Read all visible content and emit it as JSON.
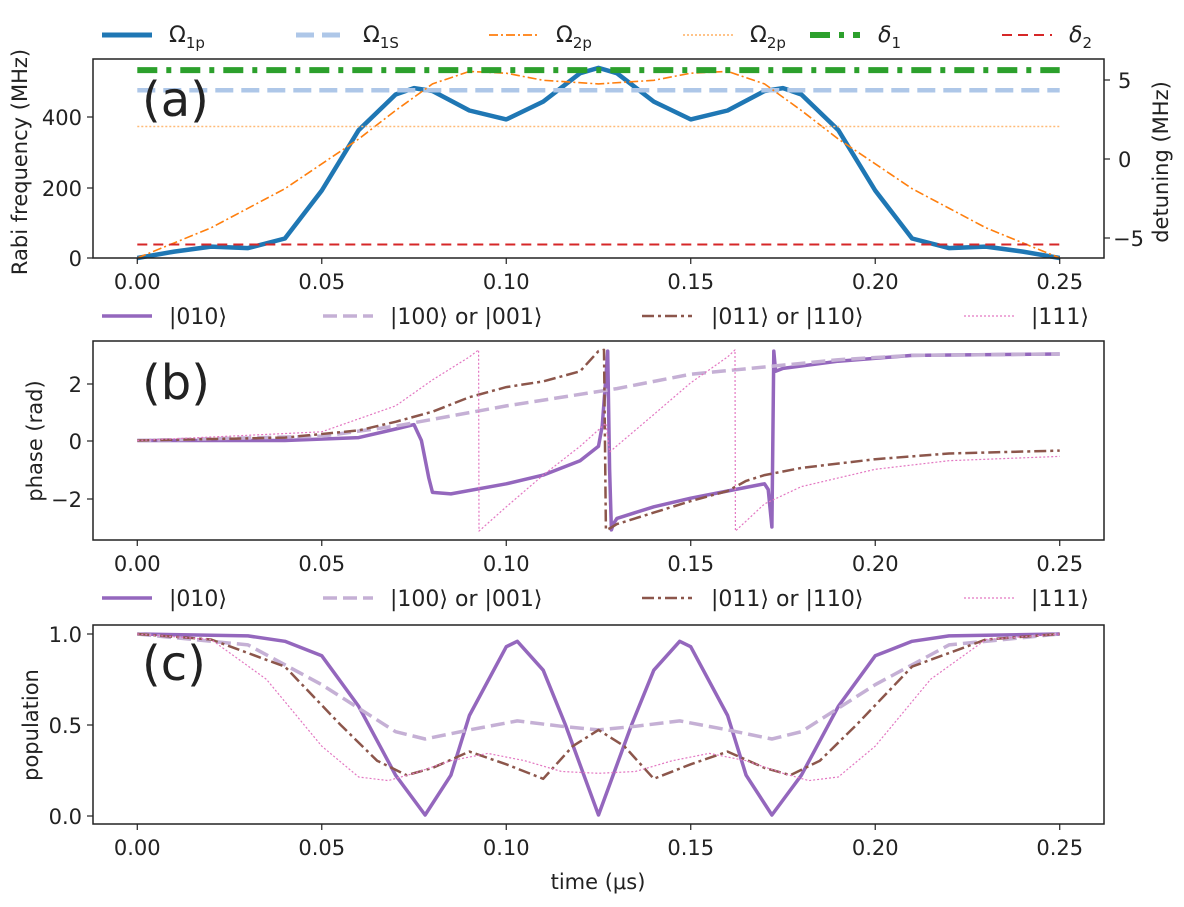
{
  "figure": {
    "panel_a": {
      "tag": "(a)",
      "ylabel": "Rabi frequency (MHz)",
      "ylabel_right": "detuning (MHz)",
      "xticks": [
        "0.00",
        "0.05",
        "0.10",
        "0.15",
        "0.20",
        "0.25"
      ],
      "yticks": [
        "0",
        "200",
        "400"
      ],
      "yticks_right": [
        "−5",
        "0",
        "5"
      ],
      "legend": [
        {
          "sym": "Ω",
          "sub": "1p",
          "color": "#1f77b4",
          "style": "solid"
        },
        {
          "sym": "Ω",
          "sub": "1S",
          "color": "#aec7e8",
          "style": "dashed"
        },
        {
          "sym": "Ω",
          "sub": "2p",
          "color": "#ff7f0e",
          "style": "dashdot"
        },
        {
          "sym": "Ω",
          "sub": "2p",
          "color": "#ffbb78",
          "style": "dotted"
        },
        {
          "sym": "δ",
          "sub": "1",
          "color": "#2ca02c",
          "style": "dashdot-thick"
        },
        {
          "sym": "δ",
          "sub": "2",
          "color": "#d62728",
          "style": "dashed-thin"
        }
      ]
    },
    "panel_b": {
      "tag": "(b)",
      "ylabel": "phase (rad)",
      "xticks": [
        "0.00",
        "0.05",
        "0.10",
        "0.15",
        "0.20",
        "0.25"
      ],
      "yticks": [
        "−2",
        "0",
        "2"
      ],
      "legend": [
        {
          "label": "|010⟩",
          "color": "#9467bd",
          "style": "solid"
        },
        {
          "label": "|100⟩ or |001⟩",
          "color": "#c5b0d5",
          "style": "dashed"
        },
        {
          "label": "|011⟩ or |110⟩",
          "color": "#8c564b",
          "style": "dashdot"
        },
        {
          "label": "|111⟩",
          "color": "#e377c2",
          "style": "dotted"
        }
      ]
    },
    "panel_c": {
      "tag": "(c)",
      "ylabel": "population",
      "xlabel": "time (μs)",
      "xticks": [
        "0.00",
        "0.05",
        "0.10",
        "0.15",
        "0.20",
        "0.25"
      ],
      "yticks": [
        "0.0",
        "0.5",
        "1.0"
      ],
      "legend": [
        {
          "label": "|010⟩",
          "color": "#9467bd",
          "style": "solid"
        },
        {
          "label": "|100⟩ or |001⟩",
          "color": "#c5b0d5",
          "style": "dashed"
        },
        {
          "label": "|011⟩ or |110⟩",
          "color": "#8c564b",
          "style": "dashdot"
        },
        {
          "label": "|111⟩",
          "color": "#e377c2",
          "style": "dotted"
        }
      ]
    }
  },
  "chart_data": [
    {
      "type": "line",
      "xlabel": "",
      "ylabel": "Rabi frequency (MHz)",
      "ylabel_right": "detuning (MHz)",
      "xlim": [
        -0.012,
        0.262
      ],
      "ylim": [
        0,
        560
      ],
      "ylim_right": [
        -6.35,
        6.2
      ],
      "series": [
        {
          "name": "Ω_1p",
          "axis": "left",
          "x": [
            0,
            0.01,
            0.02,
            0.03,
            0.04,
            0.05,
            0.06,
            0.07,
            0.075,
            0.08,
            0.09,
            0.1,
            0.11,
            0.12,
            0.125,
            0.13,
            0.14,
            0.15,
            0.16,
            0.17,
            0.175,
            0.18,
            0.19,
            0.2,
            0.21,
            0.22,
            0.23,
            0.24,
            0.25
          ],
          "y": [
            0,
            18,
            32,
            28,
            55,
            190,
            360,
            460,
            478,
            470,
            415,
            390,
            440,
            520,
            535,
            520,
            440,
            390,
            415,
            470,
            478,
            460,
            360,
            190,
            55,
            28,
            32,
            18,
            0
          ]
        },
        {
          "name": "Ω_1S",
          "axis": "left",
          "x": [
            0,
            0.25
          ],
          "y": [
            472,
            472
          ]
        },
        {
          "name": "Ω_2p",
          "axis": "left",
          "x": [
            0,
            0.02,
            0.04,
            0.06,
            0.07,
            0.08,
            0.09,
            0.1,
            0.11,
            0.125,
            0.14,
            0.15,
            0.16,
            0.17,
            0.18,
            0.19,
            0.21,
            0.23,
            0.25
          ],
          "y": [
            0,
            85,
            195,
            335,
            415,
            490,
            525,
            520,
            500,
            490,
            500,
            520,
            525,
            490,
            415,
            335,
            195,
            85,
            0
          ]
        },
        {
          "name": "Ω_2p",
          "axis": "left",
          "x": [
            0,
            0.25
          ],
          "y": [
            370,
            370
          ]
        },
        {
          "name": "δ_1",
          "axis": "right",
          "x": [
            0,
            0.25
          ],
          "y": [
            5.5,
            5.5
          ]
        },
        {
          "name": "δ_2",
          "axis": "right",
          "x": [
            0,
            0.25
          ],
          "y": [
            -5.5,
            -5.5
          ]
        }
      ]
    },
    {
      "type": "line",
      "xlabel": "",
      "ylabel": "phase (rad)",
      "xlim": [
        -0.012,
        0.262
      ],
      "ylim": [
        -3.45,
        3.45
      ],
      "series": [
        {
          "name": "|010⟩",
          "x": [
            0,
            0.04,
            0.06,
            0.07,
            0.075,
            0.077,
            0.079,
            0.08,
            0.085,
            0.1,
            0.11,
            0.12,
            0.125,
            0.126,
            0.127,
            0.1275,
            0.128,
            0.1285,
            0.129,
            0.13,
            0.14,
            0.15,
            0.16,
            0.17,
            0.171,
            0.172,
            0.1725,
            0.173,
            0.175,
            0.19,
            0.21,
            0.25
          ],
          "y": [
            0,
            0,
            0.1,
            0.4,
            0.55,
            0.0,
            -1.3,
            -1.8,
            -1.85,
            -1.5,
            -1.2,
            -0.7,
            -0.2,
            0.5,
            2.2,
            3.1,
            -1.0,
            -3.1,
            -2.9,
            -2.7,
            -2.3,
            -2.0,
            -1.75,
            -1.5,
            -1.7,
            -3.0,
            3.1,
            2.4,
            2.5,
            2.75,
            2.95,
            3.0
          ]
        },
        {
          "name": "|100⟩ or |001⟩",
          "x": [
            0,
            0.05,
            0.07,
            0.1,
            0.13,
            0.15,
            0.17,
            0.19,
            0.21,
            0.25
          ],
          "y": [
            0,
            0.15,
            0.5,
            1.2,
            1.8,
            2.3,
            2.55,
            2.8,
            2.95,
            3.0
          ]
        },
        {
          "name": "|011⟩ or |110⟩",
          "x": [
            0,
            0.04,
            0.06,
            0.07,
            0.08,
            0.09,
            0.1,
            0.11,
            0.12,
            0.125,
            0.1265,
            0.127,
            0.128,
            0.13,
            0.14,
            0.15,
            0.16,
            0.165,
            0.17,
            0.18,
            0.2,
            0.22,
            0.25
          ],
          "y": [
            0,
            0.1,
            0.35,
            0.65,
            1.0,
            1.5,
            1.85,
            2.05,
            2.4,
            3.1,
            3.14,
            -3.1,
            -3.05,
            -2.9,
            -2.5,
            -2.1,
            -1.75,
            -1.4,
            -1.2,
            -0.95,
            -0.65,
            -0.45,
            -0.35
          ]
        },
        {
          "name": "|111⟩",
          "x": [
            0,
            0.05,
            0.07,
            0.08,
            0.09,
            0.0925,
            0.0926,
            0.1,
            0.11,
            0.12,
            0.127,
            0.128,
            0.14,
            0.15,
            0.16,
            0.162,
            0.1621,
            0.17,
            0.18,
            0.2,
            0.22,
            0.25
          ],
          "y": [
            0,
            0.3,
            1.2,
            2.1,
            2.9,
            3.14,
            -3.14,
            -2.3,
            -1.2,
            -0.2,
            0.6,
            -0.4,
            0.9,
            2.0,
            2.9,
            3.14,
            -3.14,
            -2.2,
            -1.6,
            -1.0,
            -0.7,
            -0.55
          ]
        }
      ]
    },
    {
      "type": "line",
      "xlabel": "time (μs)",
      "ylabel": "population",
      "xlim": [
        -0.012,
        0.262
      ],
      "ylim": [
        -0.05,
        1.05
      ],
      "series": [
        {
          "name": "|010⟩",
          "x": [
            0,
            0.03,
            0.04,
            0.05,
            0.06,
            0.07,
            0.078,
            0.085,
            0.09,
            0.1,
            0.103,
            0.11,
            0.116,
            0.125,
            0.134,
            0.14,
            0.147,
            0.15,
            0.16,
            0.165,
            0.172,
            0.18,
            0.19,
            0.2,
            0.21,
            0.22,
            0.25
          ],
          "y": [
            1,
            0.99,
            0.96,
            0.88,
            0.6,
            0.22,
            0.0,
            0.22,
            0.55,
            0.93,
            0.96,
            0.8,
            0.5,
            0.0,
            0.5,
            0.8,
            0.96,
            0.93,
            0.55,
            0.22,
            0.0,
            0.22,
            0.6,
            0.88,
            0.96,
            0.99,
            1
          ]
        },
        {
          "name": "|100⟩ or |001⟩",
          "x": [
            0,
            0.03,
            0.05,
            0.07,
            0.078,
            0.09,
            0.103,
            0.115,
            0.125,
            0.135,
            0.147,
            0.16,
            0.172,
            0.18,
            0.2,
            0.22,
            0.25
          ],
          "y": [
            1,
            0.94,
            0.72,
            0.46,
            0.42,
            0.47,
            0.52,
            0.49,
            0.47,
            0.49,
            0.52,
            0.47,
            0.42,
            0.46,
            0.72,
            0.94,
            1
          ]
        },
        {
          "name": "|011⟩ or |110⟩",
          "x": [
            0,
            0.02,
            0.04,
            0.055,
            0.065,
            0.073,
            0.08,
            0.09,
            0.1,
            0.11,
            0.118,
            0.125,
            0.132,
            0.14,
            0.15,
            0.16,
            0.17,
            0.177,
            0.185,
            0.195,
            0.21,
            0.23,
            0.25
          ],
          "y": [
            1,
            0.97,
            0.82,
            0.5,
            0.3,
            0.22,
            0.26,
            0.35,
            0.28,
            0.2,
            0.38,
            0.47,
            0.38,
            0.2,
            0.28,
            0.35,
            0.26,
            0.22,
            0.3,
            0.5,
            0.82,
            0.97,
            1
          ]
        },
        {
          "name": "|111⟩",
          "x": [
            0,
            0.02,
            0.035,
            0.05,
            0.06,
            0.068,
            0.075,
            0.085,
            0.095,
            0.105,
            0.115,
            0.125,
            0.135,
            0.145,
            0.155,
            0.165,
            0.175,
            0.182,
            0.19,
            0.2,
            0.215,
            0.23,
            0.25
          ],
          "y": [
            1,
            0.97,
            0.75,
            0.38,
            0.21,
            0.19,
            0.23,
            0.3,
            0.34,
            0.3,
            0.24,
            0.23,
            0.24,
            0.3,
            0.34,
            0.3,
            0.23,
            0.19,
            0.21,
            0.38,
            0.75,
            0.97,
            1
          ]
        }
      ]
    }
  ]
}
